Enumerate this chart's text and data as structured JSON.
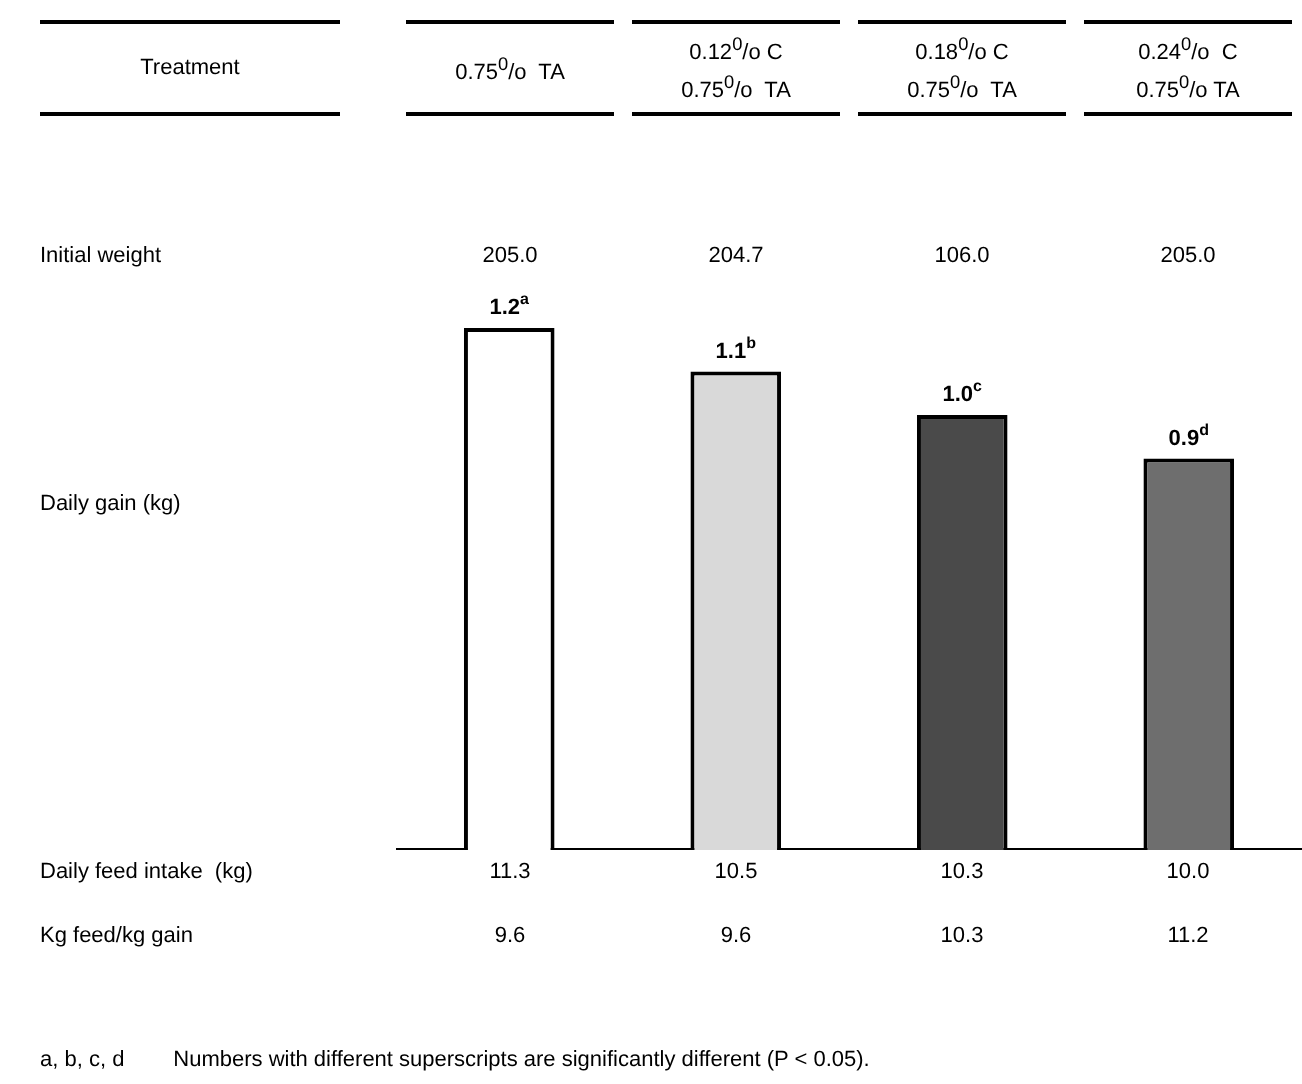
{
  "chart_data": {
    "type": "bar",
    "categories": [
      "0.75$^{0}$/o  TA",
      "0.12$^{0}$/o C\n0.75$^{0}$/o  TA",
      "0.18$^{0}$/o C\n0.75$^{0}$/o  TA",
      "0.24$^{0}$/o  C\n0.75$^{0}$/o TA"
    ],
    "values": [
      1.2,
      1.1,
      1.0,
      0.9
    ],
    "value_labels": [
      "1.2$^{a}$",
      "1.1$^{b}$",
      "1.0$^{c}$",
      "0.9$^{d}$"
    ],
    "colors": [
      "#ffffff",
      "#d9d9d9",
      "#4a4a4a",
      "#6e6e6e"
    ],
    "grid": false,
    "legend": false,
    "annotations": [
      "Treatment",
      "Initial weight",
      "205.0",
      "204.7",
      "106.0",
      "205.0",
      "Daily gain (kg)",
      "Daily feed intake  (kg)",
      "11.3",
      "10.5",
      "10.3",
      "10.0",
      "Kg feed/kg gain",
      "9.6",
      "9.6",
      "10.3",
      "11.2",
      "a, b, c, d        Numbers with different superscripts are significantly different (P < 0.05)."
    ]
  }
}
